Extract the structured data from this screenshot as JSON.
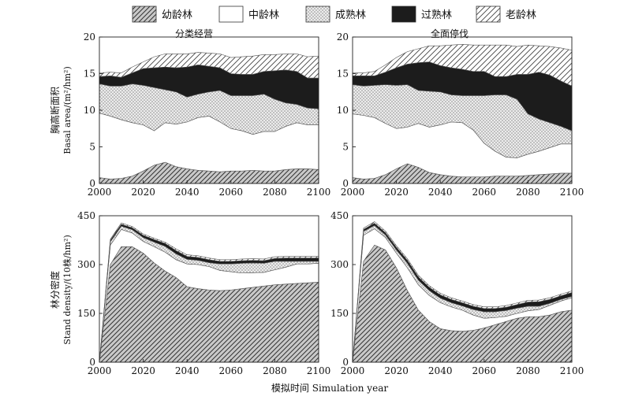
{
  "legend": {
    "items": [
      {
        "key": "young",
        "label": "幼龄林",
        "fill": "hatch"
      },
      {
        "key": "middle",
        "label": "中龄林",
        "fill": "#ffffff"
      },
      {
        "key": "mature",
        "label": "成熟林",
        "fill": "dots"
      },
      {
        "key": "over",
        "label": "过熟林",
        "fill": "#1c1c1c"
      },
      {
        "key": "old",
        "label": "老龄林",
        "fill": "hatch-light"
      }
    ]
  },
  "xlabel": "模拟时间  Simulation year",
  "chart_data": [
    {
      "id": "ba-left",
      "type": "area",
      "stacked": true,
      "title": "分类经营",
      "ylabel": [
        "胸高断面积",
        "Basal area/(m²/hm²)"
      ],
      "x": [
        2000,
        2005,
        2010,
        2015,
        2020,
        2025,
        2030,
        2035,
        2040,
        2045,
        2050,
        2055,
        2060,
        2065,
        2070,
        2075,
        2080,
        2085,
        2090,
        2095,
        2100
      ],
      "xlim": [
        2000,
        2100
      ],
      "ylim": [
        0,
        20
      ],
      "xticks": [
        2000,
        2020,
        2040,
        2060,
        2080,
        2100
      ],
      "yticks": [
        0,
        5,
        10,
        15,
        20
      ],
      "series": [
        {
          "key": "young",
          "values": [
            0.8,
            0.6,
            0.7,
            1.0,
            1.7,
            2.5,
            2.9,
            2.3,
            2.0,
            1.8,
            1.7,
            1.6,
            1.7,
            1.7,
            1.8,
            1.7,
            1.7,
            1.9,
            2.0,
            2.0,
            1.9
          ]
        },
        {
          "key": "middle",
          "values": [
            8.8,
            8.6,
            8.0,
            7.3,
            6.3,
            4.7,
            5.4,
            5.8,
            6.4,
            7.2,
            7.5,
            6.8,
            5.8,
            5.5,
            4.9,
            5.4,
            5.4,
            5.9,
            6.3,
            6.0,
            6.1
          ]
        },
        {
          "key": "mature",
          "values": [
            4.0,
            4.1,
            4.6,
            5.3,
            5.4,
            5.9,
            4.5,
            4.4,
            3.4,
            3.2,
            3.3,
            4.3,
            4.5,
            4.8,
            5.3,
            5.1,
            4.4,
            3.2,
            2.5,
            2.3,
            2.2
          ]
        },
        {
          "key": "over",
          "values": [
            1.0,
            1.4,
            1.2,
            1.5,
            2.3,
            2.7,
            3.1,
            3.3,
            4.1,
            4.0,
            3.5,
            3.1,
            3.0,
            2.9,
            2.9,
            3.1,
            3.9,
            4.5,
            4.5,
            4.1,
            4.2
          ]
        },
        {
          "key": "old",
          "values": [
            0.5,
            0.5,
            0.6,
            0.8,
            0.9,
            1.5,
            1.8,
            1.9,
            1.8,
            1.7,
            1.8,
            1.9,
            2.2,
            2.4,
            2.5,
            2.3,
            2.2,
            2.2,
            2.4,
            2.9,
            3.0
          ]
        }
      ]
    },
    {
      "id": "ba-right",
      "type": "area",
      "stacked": true,
      "title": "全面停伐",
      "x": [
        2000,
        2005,
        2010,
        2015,
        2020,
        2025,
        2030,
        2035,
        2040,
        2045,
        2050,
        2055,
        2060,
        2065,
        2070,
        2075,
        2080,
        2085,
        2090,
        2095,
        2100
      ],
      "xlim": [
        2000,
        2100
      ],
      "ylim": [
        0,
        20
      ],
      "xticks": [
        2000,
        2020,
        2040,
        2060,
        2080,
        2100
      ],
      "yticks": [
        0,
        5,
        10,
        15,
        20
      ],
      "series": [
        {
          "key": "young",
          "values": [
            0.8,
            0.6,
            0.7,
            1.2,
            2.0,
            2.7,
            2.2,
            1.5,
            1.2,
            1.0,
            0.9,
            0.9,
            0.9,
            1.0,
            1.0,
            1.0,
            1.1,
            1.2,
            1.3,
            1.4,
            1.4
          ]
        },
        {
          "key": "middle",
          "values": [
            8.7,
            8.7,
            8.3,
            7.0,
            5.5,
            5.0,
            6.0,
            6.2,
            6.8,
            7.4,
            7.4,
            6.4,
            4.6,
            3.4,
            2.6,
            2.5,
            2.9,
            3.2,
            3.6,
            4.0,
            4.0
          ]
        },
        {
          "key": "mature",
          "values": [
            4.0,
            4.0,
            4.4,
            5.3,
            5.9,
            5.8,
            4.5,
            4.9,
            4.5,
            3.7,
            3.7,
            4.7,
            6.5,
            7.7,
            8.5,
            8.0,
            5.5,
            4.4,
            3.4,
            2.4,
            1.8
          ]
        },
        {
          "key": "over",
          "values": [
            1.2,
            1.4,
            1.3,
            1.7,
            2.4,
            2.8,
            3.8,
            4.0,
            3.6,
            3.7,
            3.6,
            3.3,
            3.3,
            2.5,
            2.5,
            3.4,
            5.4,
            6.4,
            6.5,
            6.2,
            6.1
          ]
        },
        {
          "key": "old",
          "values": [
            0.4,
            0.4,
            0.6,
            1.0,
            1.4,
            1.7,
            1.9,
            2.2,
            2.7,
            3.1,
            3.4,
            3.6,
            3.6,
            4.3,
            4.3,
            3.8,
            4.0,
            3.6,
            3.9,
            4.5,
            4.9
          ]
        }
      ]
    },
    {
      "id": "sd-left",
      "type": "area",
      "stacked": true,
      "ylabel": [
        "林分密度",
        "Stand density/(10株/hm²)"
      ],
      "x": [
        2000,
        2005,
        2010,
        2015,
        2020,
        2025,
        2030,
        2035,
        2040,
        2045,
        2050,
        2055,
        2060,
        2065,
        2070,
        2075,
        2080,
        2085,
        2090,
        2095,
        2100
      ],
      "xlim": [
        2000,
        2100
      ],
      "ylim": [
        0,
        450
      ],
      "xticks": [
        2000,
        2020,
        2040,
        2060,
        2080,
        2100
      ],
      "yticks": [
        0,
        150,
        300,
        450
      ],
      "series": [
        {
          "key": "young",
          "values": [
            0,
            300,
            355,
            355,
            335,
            305,
            280,
            260,
            232,
            226,
            222,
            220,
            222,
            226,
            230,
            234,
            238,
            240,
            242,
            244,
            246
          ]
        },
        {
          "key": "middle",
          "values": [
            0,
            60,
            53,
            42,
            36,
            50,
            58,
            55,
            70,
            74,
            72,
            62,
            56,
            48,
            45,
            42,
            46,
            52,
            60,
            58,
            58
          ]
        },
        {
          "key": "mature",
          "values": [
            0,
            10,
            10,
            10,
            12,
            14,
            18,
            18,
            14,
            13,
            12,
            20,
            24,
            30,
            30,
            28,
            26,
            18,
            8,
            8,
            6
          ]
        },
        {
          "key": "over",
          "values": [
            0,
            5,
            6,
            6,
            7,
            8,
            9,
            10,
            9,
            9,
            9,
            8,
            8,
            8,
            8,
            8,
            9,
            10,
            10,
            10,
            10
          ]
        },
        {
          "key": "old",
          "values": [
            0,
            3,
            4,
            4,
            4,
            4,
            4,
            5,
            5,
            5,
            5,
            5,
            5,
            5,
            5,
            5,
            5,
            5,
            5,
            5,
            5
          ]
        }
      ]
    },
    {
      "id": "sd-right",
      "type": "area",
      "stacked": true,
      "x": [
        2000,
        2005,
        2010,
        2015,
        2020,
        2025,
        2030,
        2035,
        2040,
        2045,
        2050,
        2055,
        2060,
        2065,
        2070,
        2075,
        2080,
        2085,
        2090,
        2095,
        2100
      ],
      "xlim": [
        2000,
        2100
      ],
      "ylim": [
        0,
        450
      ],
      "xticks": [
        2000,
        2020,
        2040,
        2060,
        2080,
        2100
      ],
      "yticks": [
        0,
        150,
        300,
        450
      ],
      "series": [
        {
          "key": "young",
          "values": [
            0,
            310,
            360,
            345,
            290,
            220,
            160,
            125,
            103,
            97,
            95,
            98,
            105,
            115,
            125,
            135,
            140,
            140,
            145,
            155,
            160
          ]
        },
        {
          "key": "middle",
          "values": [
            0,
            80,
            50,
            38,
            45,
            70,
            78,
            80,
            80,
            73,
            65,
            47,
            30,
            22,
            16,
            15,
            18,
            22,
            30,
            33,
            38
          ]
        },
        {
          "key": "mature",
          "values": [
            0,
            12,
            10,
            8,
            10,
            14,
            14,
            15,
            14,
            13,
            13,
            17,
            20,
            18,
            18,
            16,
            14,
            10,
            6,
            5,
            4
          ]
        },
        {
          "key": "over",
          "values": [
            0,
            6,
            7,
            7,
            8,
            9,
            10,
            10,
            10,
            10,
            10,
            10,
            10,
            10,
            10,
            11,
            13,
            14,
            12,
            11,
            12
          ]
        },
        {
          "key": "old",
          "values": [
            0,
            4,
            5,
            5,
            5,
            5,
            5,
            5,
            5,
            5,
            5,
            5,
            5,
            5,
            5,
            5,
            5,
            5,
            5,
            5,
            5
          ]
        }
      ]
    }
  ]
}
